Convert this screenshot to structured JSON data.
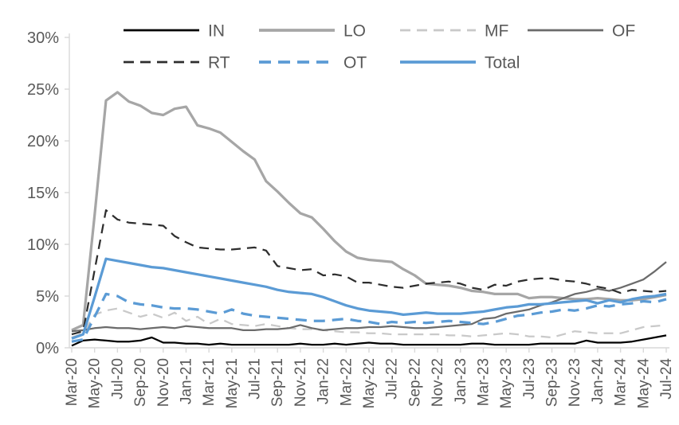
{
  "chart_data": {
    "type": "line",
    "title": "",
    "xlabel": "",
    "ylabel": "",
    "ylim": [
      0,
      30
    ],
    "yticks": [
      0,
      5,
      10,
      15,
      20,
      25,
      30
    ],
    "yticklabels": [
      "0%",
      "5%",
      "10%",
      "15%",
      "20%",
      "25%",
      "30%"
    ],
    "grid": "off",
    "legend_position": "top",
    "axis_color": "#d9d9d9",
    "text_color": "#595959",
    "x_tick_step": 2,
    "x": [
      "Mar-20",
      "Apr-20",
      "May-20",
      "Jun-20",
      "Jul-20",
      "Aug-20",
      "Sep-20",
      "Oct-20",
      "Nov-20",
      "Dec-20",
      "Jan-21",
      "Feb-21",
      "Mar-21",
      "Apr-21",
      "May-21",
      "Jun-21",
      "Jul-21",
      "Aug-21",
      "Sep-21",
      "Oct-21",
      "Nov-21",
      "Dec-21",
      "Jan-22",
      "Feb-22",
      "Mar-22",
      "Apr-22",
      "May-22",
      "Jun-22",
      "Jul-22",
      "Aug-22",
      "Sep-22",
      "Oct-22",
      "Nov-22",
      "Dec-22",
      "Jan-23",
      "Feb-23",
      "Mar-23",
      "Apr-23",
      "May-23",
      "Jun-23",
      "Jul-23",
      "Aug-23",
      "Sep-23",
      "Oct-23",
      "Nov-23",
      "Dec-23",
      "Jan-24",
      "Feb-24",
      "Mar-24",
      "Apr-24",
      "May-24",
      "Jun-24",
      "Jul-24"
    ],
    "x_ticks_shown": [
      "Mar-20",
      "May-20",
      "Jul-20",
      "Sep-20",
      "Nov-20",
      "Jan-21",
      "Mar-21",
      "May-21",
      "Jul-21",
      "Sep-21",
      "Nov-21",
      "Jan-22",
      "Mar-22",
      "May-22",
      "Jul-22",
      "Sep-22",
      "Nov-22",
      "Jan-23",
      "Mar-23",
      "May-23",
      "Jul-23",
      "Sep-23",
      "Nov-23",
      "Jan-24",
      "Mar-24",
      "May-24",
      "Jul-24"
    ],
    "legend_rows": [
      [
        "IN",
        "LO",
        "MF",
        "OF"
      ],
      [
        "RT",
        "OT",
        "Total"
      ]
    ],
    "series": [
      {
        "name": "IN",
        "color": "#000000",
        "dash": "solid",
        "width": 2.25,
        "values": [
          0.2,
          0.7,
          0.8,
          0.7,
          0.6,
          0.6,
          0.7,
          1.0,
          0.5,
          0.5,
          0.4,
          0.4,
          0.3,
          0.4,
          0.3,
          0.3,
          0.3,
          0.3,
          0.3,
          0.3,
          0.4,
          0.3,
          0.3,
          0.4,
          0.3,
          0.4,
          0.5,
          0.4,
          0.4,
          0.3,
          0.3,
          0.3,
          0.3,
          0.3,
          0.3,
          0.4,
          0.4,
          0.3,
          0.3,
          0.3,
          0.3,
          0.4,
          0.4,
          0.4,
          0.4,
          0.7,
          0.5,
          0.5,
          0.5,
          0.6,
          0.8,
          1.0,
          1.2
        ]
      },
      {
        "name": "LO",
        "color": "#a6a6a6",
        "dash": "solid",
        "width": 3.25,
        "values": [
          1.7,
          2.2,
          12.8,
          23.9,
          24.7,
          23.8,
          23.4,
          22.7,
          22.5,
          23.1,
          23.3,
          21.5,
          21.2,
          20.8,
          19.9,
          19.0,
          18.2,
          16.1,
          15.1,
          14.0,
          13.0,
          12.6,
          11.5,
          10.3,
          9.3,
          8.7,
          8.5,
          8.4,
          8.3,
          7.6,
          7.0,
          6.2,
          6.1,
          6.0,
          5.8,
          5.5,
          5.4,
          5.2,
          5.2,
          5.2,
          4.8,
          4.9,
          4.9,
          4.8,
          4.7,
          4.7,
          4.8,
          4.7,
          4.6,
          4.6,
          4.7,
          4.9,
          5.1
        ]
      },
      {
        "name": "MF",
        "color": "#c9c9c9",
        "dash": "dashed",
        "width": 2.25,
        "values": [
          1.0,
          1.4,
          3.2,
          3.6,
          3.8,
          3.4,
          3.0,
          3.3,
          2.9,
          3.4,
          2.6,
          3.0,
          2.3,
          2.8,
          2.3,
          2.2,
          2.1,
          2.3,
          2.1,
          1.9,
          1.8,
          1.8,
          1.7,
          1.6,
          1.5,
          1.5,
          1.4,
          1.4,
          1.3,
          1.3,
          1.3,
          1.3,
          1.3,
          1.2,
          1.2,
          1.1,
          1.2,
          1.3,
          1.4,
          1.3,
          1.1,
          1.1,
          1.0,
          1.3,
          1.6,
          1.5,
          1.4,
          1.4,
          1.4,
          1.7,
          2.0,
          2.1,
          2.2
        ]
      },
      {
        "name": "OF",
        "color": "#6b6b6b",
        "dash": "solid",
        "width": 2.25,
        "values": [
          1.6,
          1.7,
          1.9,
          2.0,
          1.9,
          1.9,
          1.8,
          1.9,
          2.0,
          1.9,
          2.1,
          2.0,
          1.9,
          1.9,
          1.9,
          1.7,
          1.7,
          1.8,
          1.8,
          1.9,
          2.2,
          1.9,
          1.7,
          1.8,
          1.9,
          1.9,
          2.0,
          2.0,
          2.1,
          2.0,
          1.9,
          1.9,
          2.0,
          2.1,
          2.2,
          2.3,
          2.8,
          2.9,
          3.3,
          3.5,
          3.7,
          4.1,
          4.4,
          4.8,
          5.2,
          5.4,
          5.7,
          5.5,
          5.8,
          6.2,
          6.6,
          7.4,
          8.3
        ]
      },
      {
        "name": "RT",
        "color": "#2e2e2e",
        "dash": "dashed",
        "width": 2.25,
        "values": [
          1.3,
          1.6,
          7.5,
          13.3,
          12.4,
          12.1,
          12.0,
          11.9,
          11.8,
          10.8,
          10.2,
          9.7,
          9.6,
          9.5,
          9.5,
          9.6,
          9.7,
          9.4,
          7.9,
          7.7,
          7.5,
          7.6,
          7.0,
          7.1,
          6.9,
          6.3,
          6.3,
          6.1,
          5.9,
          5.8,
          6.0,
          6.2,
          6.3,
          6.4,
          6.2,
          5.8,
          5.6,
          6.1,
          6.0,
          6.4,
          6.6,
          6.7,
          6.7,
          6.5,
          6.4,
          6.2,
          5.9,
          5.7,
          5.3,
          5.6,
          5.5,
          5.4,
          5.5
        ]
      },
      {
        "name": "OT",
        "color": "#5b9bd5",
        "dash": "dashed",
        "width": 3.25,
        "values": [
          0.6,
          0.8,
          3.0,
          5.2,
          5.0,
          4.4,
          4.2,
          4.1,
          3.9,
          3.8,
          3.8,
          3.7,
          3.5,
          3.3,
          3.7,
          3.3,
          3.1,
          3.0,
          2.9,
          2.8,
          2.7,
          2.6,
          2.6,
          2.7,
          2.8,
          2.6,
          2.5,
          2.3,
          2.5,
          2.4,
          2.5,
          2.4,
          2.5,
          2.6,
          2.5,
          2.4,
          2.3,
          2.5,
          2.8,
          3.1,
          3.2,
          3.4,
          3.5,
          3.7,
          3.6,
          3.8,
          4.1,
          4.0,
          4.2,
          4.3,
          4.5,
          4.4,
          4.7
        ]
      },
      {
        "name": "Total",
        "color": "#5b9bd5",
        "dash": "solid",
        "width": 3.25,
        "values": [
          0.9,
          1.3,
          4.9,
          8.6,
          8.4,
          8.2,
          8.0,
          7.8,
          7.7,
          7.5,
          7.3,
          7.1,
          6.9,
          6.7,
          6.5,
          6.3,
          6.1,
          5.9,
          5.6,
          5.4,
          5.3,
          5.2,
          4.9,
          4.5,
          4.1,
          3.8,
          3.6,
          3.5,
          3.4,
          3.2,
          3.3,
          3.4,
          3.3,
          3.3,
          3.3,
          3.4,
          3.5,
          3.7,
          3.9,
          4.0,
          4.2,
          4.2,
          4.3,
          4.4,
          4.5,
          4.6,
          4.3,
          4.6,
          4.4,
          4.7,
          4.9,
          5.0,
          5.2
        ]
      }
    ]
  }
}
